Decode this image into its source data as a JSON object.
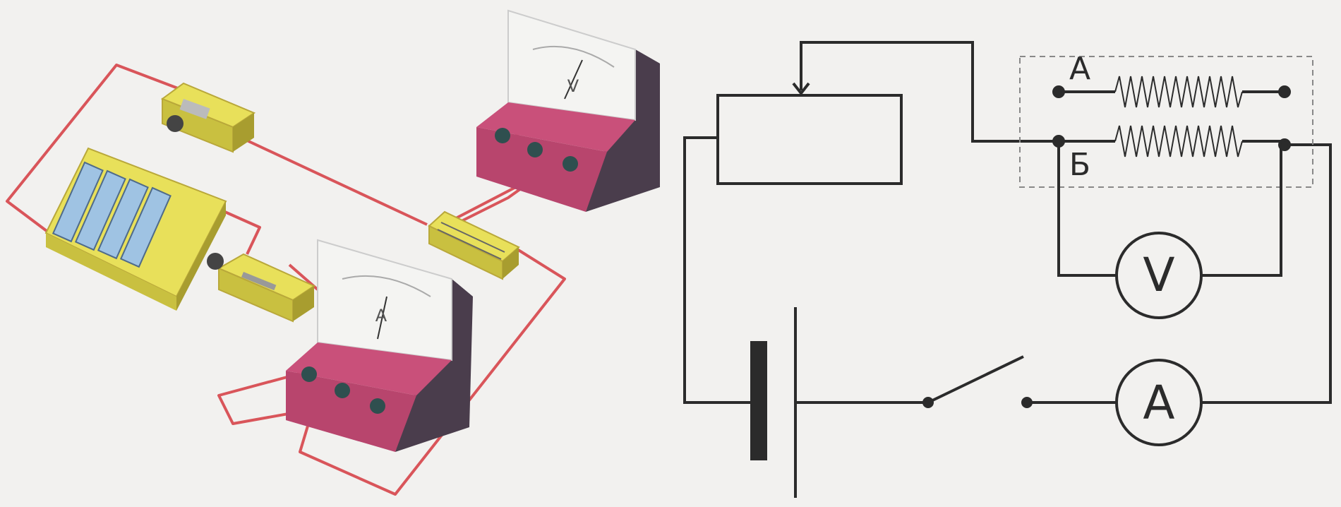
{
  "colors": {
    "paper": "#f2f1ef",
    "wire_red": "#d9555a",
    "schematic_ink": "#2b2b2b",
    "device_yellow": "#e8e05a",
    "meter_body": "#4a3d4c",
    "meter_panel": "#c9507a",
    "meter_face": "#f4f4f2",
    "battery_blue": "#9fc3e3"
  },
  "apparatus": {
    "voltmeter": {
      "symbol": "V"
    },
    "ammeter": {
      "symbol": "A"
    }
  },
  "schematic": {
    "label_coil_a": "А",
    "label_coil_b": "Б",
    "voltmeter_symbol": "V",
    "ammeter_symbol": "A"
  }
}
